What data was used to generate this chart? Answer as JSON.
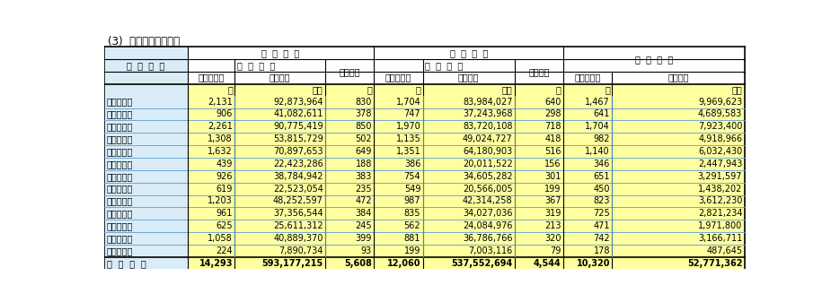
{
  "title": "(3)  税務署別課税状況",
  "header_row1_left": "申  告  状  況",
  "header_row1_mid": "課  税  状  況",
  "header_row1_right": "納  付  税  額",
  "header_row2_col1": "課  税  価  格",
  "header_row2_col2": "被相続人",
  "header_row2_col3": "課  税  価  格",
  "header_row2_col4": "被相続人",
  "header_row3_col1a": "相続人の数",
  "header_row3_col1b": "金　　額",
  "header_row3_col2": "の　数",
  "header_row3_col3a": "相続人の数",
  "header_row3_col3b": "金　　額",
  "header_row3_col4": "の　数",
  "header_row3_col5a": "相続人の数",
  "header_row3_col5b": "金　　額",
  "unit_row": [
    "人",
    "千円",
    "人",
    "人",
    "千円",
    "人",
    "人",
    "千円"
  ],
  "col_label": "税  務  署  名",
  "rows": [
    [
      "静　　　岡",
      "2,131",
      "92,873,964",
      "830",
      "1,704",
      "83,984,027",
      "640",
      "1,467",
      "9,969,623"
    ],
    [
      "清　　　水",
      "906",
      "41,082,611",
      "378",
      "747",
      "37,243,968",
      "298",
      "641",
      "4,689,583"
    ],
    [
      "浜　松　西",
      "2,261",
      "90,775,419",
      "850",
      "1,970",
      "83,720,108",
      "718",
      "1,704",
      "7,923,400"
    ],
    [
      "浜　松　東",
      "1,308",
      "53,815,729",
      "502",
      "1,135",
      "49,024,727",
      "418",
      "982",
      "4,918,966"
    ],
    [
      "沼　　　津",
      "1,632",
      "70,897,653",
      "649",
      "1,351",
      "64,180,903",
      "516",
      "1,140",
      "6,032,430"
    ],
    [
      "熱　　　海",
      "439",
      "22,423,286",
      "188",
      "386",
      "20,011,522",
      "156",
      "346",
      "2,447,943"
    ],
    [
      "三　　　島",
      "926",
      "38,784,942",
      "383",
      "754",
      "34,605,282",
      "301",
      "651",
      "3,291,597"
    ],
    [
      "島　　　田",
      "619",
      "22,523,054",
      "235",
      "549",
      "20,566,005",
      "199",
      "450",
      "1,438,202"
    ],
    [
      "富　　　士",
      "1,203",
      "48,252,597",
      "472",
      "987",
      "42,314,258",
      "367",
      "823",
      "3,612,230"
    ],
    [
      "磐　　　田",
      "961",
      "37,356,544",
      "384",
      "835",
      "34,027,036",
      "319",
      "725",
      "2,821,234"
    ],
    [
      "掛　　　川",
      "625",
      "25,611,312",
      "245",
      "562",
      "24,084,976",
      "213",
      "471",
      "1,971,800"
    ],
    [
      "藤　　　枝",
      "1,058",
      "40,889,370",
      "399",
      "881",
      "36,786,766",
      "320",
      "742",
      "3,166,711"
    ],
    [
      "下　　　田",
      "224",
      "7,890,734",
      "93",
      "199",
      "7,003,116",
      "79",
      "178",
      "487,645"
    ]
  ],
  "total_row": [
    "静  岡  県  計",
    "14,293",
    "593,177,215",
    "5,608",
    "12,060",
    "537,552,694",
    "4,544",
    "10,320",
    "52,771,362"
  ],
  "bg_white": "#ffffff",
  "bg_yellow": "#ffffa0",
  "bg_lightblue": "#d9ecf7",
  "text_color": "#000000",
  "border_outer": "#000000",
  "border_inner_blue": "#5b9bd5",
  "border_inner_red": "#cc0000",
  "font_size_title": 8.5,
  "font_size_header": 7,
  "font_size_data": 7
}
